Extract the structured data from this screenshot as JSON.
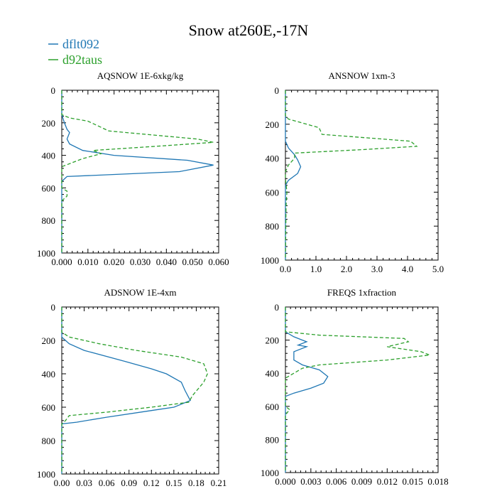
{
  "title": "Snow at260E,-17N",
  "colors": {
    "series1": "#1f77b4",
    "series2": "#2ca02c"
  },
  "legend": [
    {
      "name": "dflt092",
      "color": "#1f77b4",
      "dash": "solid"
    },
    {
      "name": "d92taus",
      "color": "#2ca02c",
      "dash": "dashed"
    }
  ],
  "chart_data": [
    {
      "type": "line",
      "title": "AQSNOW  1E-6xkg/kg",
      "xlim": [
        0,
        0.06
      ],
      "ylim": [
        1000,
        0
      ],
      "xticks": [
        0,
        0.01,
        0.02,
        0.03,
        0.04,
        0.05,
        0.06
      ],
      "xtick_labels": [
        "0.000",
        "0.010",
        "0.020",
        "0.030",
        "0.040",
        "0.050",
        "0.060"
      ],
      "yticks": [
        0,
        200,
        400,
        600,
        800,
        1000
      ],
      "ytick_labels": [
        "0",
        "200",
        "400",
        "600",
        "800",
        "1000"
      ],
      "series": [
        {
          "name": "dflt092",
          "points": [
            [
              0,
              0
            ],
            [
              0,
              150
            ],
            [
              0.001,
              200
            ],
            [
              0.002,
              240
            ],
            [
              0.003,
              260
            ],
            [
              0.002,
              300
            ],
            [
              0.003,
              330
            ],
            [
              0.008,
              370
            ],
            [
              0.02,
              400
            ],
            [
              0.048,
              430
            ],
            [
              0.058,
              460
            ],
            [
              0.045,
              500
            ],
            [
              0.002,
              530
            ],
            [
              0,
              560
            ],
            [
              0,
              1000
            ]
          ]
        },
        {
          "name": "d92taus",
          "points": [
            [
              0,
              0
            ],
            [
              0,
              150
            ],
            [
              0.003,
              170
            ],
            [
              0.01,
              190
            ],
            [
              0.018,
              250
            ],
            [
              0.052,
              300
            ],
            [
              0.058,
              320
            ],
            [
              0.04,
              340
            ],
            [
              0.012,
              370
            ],
            [
              0.015,
              390
            ],
            [
              0.008,
              420
            ],
            [
              0.004,
              445
            ],
            [
              0,
              470
            ],
            [
              0,
              600
            ],
            [
              0.002,
              620
            ],
            [
              0.002,
              650
            ],
            [
              0,
              680
            ],
            [
              0,
              1000
            ]
          ]
        }
      ]
    },
    {
      "type": "line",
      "title": "ANSNOW  1xm-3",
      "xlim": [
        0,
        5
      ],
      "ylim": [
        1000,
        0
      ],
      "xticks": [
        0,
        1,
        2,
        3,
        4,
        5
      ],
      "xtick_labels": [
        "0.0",
        "1.0",
        "2.0",
        "3.0",
        "4.0",
        "5.0"
      ],
      "yticks": [
        0,
        200,
        400,
        600,
        800,
        1000
      ],
      "ytick_labels": [
        "0",
        "200",
        "400",
        "600",
        "800",
        "1000"
      ],
      "series": [
        {
          "name": "dflt092",
          "points": [
            [
              0,
              0
            ],
            [
              0,
              300
            ],
            [
              0.1,
              340
            ],
            [
              0.3,
              380
            ],
            [
              0.4,
              410
            ],
            [
              0.5,
              450
            ],
            [
              0.4,
              490
            ],
            [
              0.1,
              530
            ],
            [
              0,
              560
            ],
            [
              0,
              1000
            ]
          ]
        },
        {
          "name": "d92taus",
          "points": [
            [
              0,
              0
            ],
            [
              0,
              150
            ],
            [
              0.1,
              170
            ],
            [
              1.1,
              220
            ],
            [
              1.2,
              260
            ],
            [
              4.1,
              300
            ],
            [
              4.3,
              330
            ],
            [
              2.5,
              350
            ],
            [
              0.3,
              370
            ],
            [
              0.3,
              400
            ],
            [
              0.1,
              440
            ],
            [
              0,
              480
            ],
            [
              0,
              520
            ],
            [
              0.05,
              600
            ],
            [
              0.02,
              680
            ],
            [
              0,
              1000
            ]
          ]
        }
      ]
    },
    {
      "type": "line",
      "title": "ADSNOW  1E-4xm",
      "xlim": [
        0,
        0.21
      ],
      "ylim": [
        1000,
        0
      ],
      "xticks": [
        0,
        0.03,
        0.06,
        0.09,
        0.12,
        0.15,
        0.18,
        0.21
      ],
      "xtick_labels": [
        "0.00",
        "0.03",
        "0.06",
        "0.09",
        "0.12",
        "0.15",
        "0.18",
        "0.21"
      ],
      "yticks": [
        0,
        200,
        400,
        600,
        800,
        1000
      ],
      "ytick_labels": [
        "0",
        "200",
        "400",
        "600",
        "800",
        "1000"
      ],
      "series": [
        {
          "name": "dflt092",
          "points": [
            [
              0,
              0
            ],
            [
              0,
              180
            ],
            [
              0.01,
              220
            ],
            [
              0.03,
              260
            ],
            [
              0.08,
              320
            ],
            [
              0.12,
              370
            ],
            [
              0.14,
              400
            ],
            [
              0.16,
              450
            ],
            [
              0.165,
              500
            ],
            [
              0.172,
              560
            ],
            [
              0.15,
              600
            ],
            [
              0.12,
              620
            ],
            [
              0.06,
              660
            ],
            [
              0.02,
              690
            ],
            [
              0,
              700
            ],
            [
              0,
              1000
            ]
          ]
        },
        {
          "name": "d92taus",
          "points": [
            [
              0,
              0
            ],
            [
              0,
              150
            ],
            [
              0.01,
              180
            ],
            [
              0.05,
              220
            ],
            [
              0.1,
              260
            ],
            [
              0.16,
              300
            ],
            [
              0.19,
              340
            ],
            [
              0.195,
              400
            ],
            [
              0.19,
              450
            ],
            [
              0.175,
              530
            ],
            [
              0.17,
              570
            ],
            [
              0.12,
              600
            ],
            [
              0.06,
              630
            ],
            [
              0.01,
              650
            ],
            [
              0.005,
              680
            ],
            [
              0,
              700
            ],
            [
              0,
              1000
            ]
          ]
        }
      ]
    },
    {
      "type": "line",
      "title": "FREQS  1xfraction",
      "xlim": [
        0,
        0.018
      ],
      "ylim": [
        1000,
        0
      ],
      "xticks": [
        0,
        0.003,
        0.006,
        0.009,
        0.012,
        0.015,
        0.018
      ],
      "xtick_labels": [
        "0.000",
        "0.003",
        "0.006",
        "0.009",
        "0.012",
        "0.015",
        "0.018"
      ],
      "yticks": [
        0,
        200,
        400,
        600,
        800,
        1000
      ],
      "ytick_labels": [
        "0",
        "200",
        "400",
        "600",
        "800",
        "1000"
      ],
      "series": [
        {
          "name": "dflt092",
          "points": [
            [
              0,
              0
            ],
            [
              0,
              150
            ],
            [
              0.001,
              180
            ],
            [
              0.002,
              200
            ],
            [
              0.0025,
              210
            ],
            [
              0.0015,
              230
            ],
            [
              0.0025,
              240
            ],
            [
              0.001,
              270
            ],
            [
              0.001,
              320
            ],
            [
              0.002,
              350
            ],
            [
              0.004,
              380
            ],
            [
              0.005,
              420
            ],
            [
              0.0045,
              460
            ],
            [
              0.003,
              490
            ],
            [
              0.001,
              520
            ],
            [
              0,
              540
            ],
            [
              0,
              1000
            ]
          ]
        },
        {
          "name": "d92taus",
          "points": [
            [
              0,
              0
            ],
            [
              0,
              150
            ],
            [
              0.004,
              170
            ],
            [
              0.014,
              190
            ],
            [
              0.0145,
              210
            ],
            [
              0.012,
              240
            ],
            [
              0.016,
              270
            ],
            [
              0.017,
              290
            ],
            [
              0.012,
              320
            ],
            [
              0.004,
              350
            ],
            [
              0.002,
              370
            ],
            [
              0.001,
              400
            ],
            [
              0,
              430
            ],
            [
              0,
              600
            ],
            [
              0.0005,
              620
            ],
            [
              0,
              650
            ],
            [
              0,
              1000
            ]
          ]
        }
      ]
    }
  ]
}
